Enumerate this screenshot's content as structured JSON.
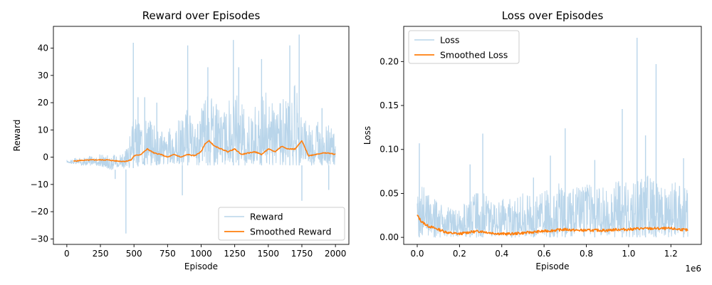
{
  "chart_data": [
    {
      "type": "line",
      "title": "Reward over Episodes",
      "xlabel": "Episode",
      "ylabel": "Reward",
      "xlim": [
        -100,
        2100
      ],
      "ylim": [
        -32,
        48
      ],
      "xticks": [
        0,
        250,
        500,
        750,
        1000,
        1250,
        1500,
        1750,
        2000
      ],
      "xtick_labels": [
        "0",
        "250",
        "500",
        "750",
        "1000",
        "1250",
        "1500",
        "1750",
        "2000"
      ],
      "yticks": [
        -30,
        -20,
        -10,
        0,
        10,
        20,
        30,
        40
      ],
      "ytick_labels": [
        "−30",
        "−20",
        "−10",
        "0",
        "10",
        "20",
        "30",
        "40"
      ],
      "x_offset_label": "",
      "grid": false,
      "legend_position": "lower-right",
      "series": [
        {
          "name": "Reward",
          "color": "#b9d5ea",
          "envelope": {
            "x": [
              0,
              100,
              200,
              300,
              350,
              400,
              430,
              450,
              480,
              500,
              550,
              600,
              650,
              700,
              750,
              800,
              850,
              900,
              950,
              1000,
              1050,
              1100,
              1150,
              1200,
              1250,
              1300,
              1350,
              1400,
              1450,
              1500,
              1550,
              1600,
              1650,
              1700,
              1750,
              1800,
              1850,
              1900,
              1950,
              2000
            ],
            "high": [
              -1,
              0,
              1,
              1,
              1,
              2,
              3,
              5,
              10,
              15,
              12,
              15,
              12,
              10,
              10,
              12,
              15,
              18,
              10,
              20,
              30,
              22,
              15,
              20,
              25,
              20,
              15,
              20,
              22,
              25,
              18,
              22,
              20,
              28,
              15,
              12,
              15,
              10,
              12,
              8
            ],
            "low": [
              -2,
              -3,
              -3,
              -4,
              -5,
              -3,
              -5,
              -4,
              -4,
              -4,
              -3,
              -3,
              -3,
              -3,
              -3,
              -3,
              -3,
              -3,
              -3,
              -3,
              -3,
              -3,
              -3,
              -3,
              -3,
              -3,
              -3,
              -3,
              -3,
              -3,
              -3,
              -3,
              -3,
              -3,
              -3,
              -3,
              -3,
              -3,
              -3,
              -3
            ]
          },
          "spikes": [
            {
              "x": 440,
              "y": -28
            },
            {
              "x": 495,
              "y": 42
            },
            {
              "x": 530,
              "y": 22
            },
            {
              "x": 580,
              "y": 22
            },
            {
              "x": 670,
              "y": 20
            },
            {
              "x": 900,
              "y": 41
            },
            {
              "x": 1050,
              "y": 33
            },
            {
              "x": 1240,
              "y": 43
            },
            {
              "x": 1280,
              "y": 33
            },
            {
              "x": 1450,
              "y": 36
            },
            {
              "x": 1660,
              "y": 41
            },
            {
              "x": 1730,
              "y": 45
            },
            {
              "x": 1750,
              "y": -16
            },
            {
              "x": 860,
              "y": -14
            },
            {
              "x": 360,
              "y": -8
            },
            {
              "x": 1950,
              "y": -12
            },
            {
              "x": 1900,
              "y": 18
            }
          ]
        },
        {
          "name": "Smoothed Reward",
          "color": "#ff7f0e",
          "x": [
            50,
            100,
            200,
            300,
            350,
            400,
            440,
            480,
            500,
            550,
            600,
            650,
            700,
            750,
            800,
            850,
            900,
            950,
            1000,
            1030,
            1060,
            1100,
            1150,
            1200,
            1250,
            1300,
            1350,
            1400,
            1450,
            1500,
            1550,
            1600,
            1650,
            1700,
            1750,
            1800,
            1850,
            1900,
            1950,
            2000
          ],
          "y": [
            -1.5,
            -1.2,
            -1,
            -1,
            -1.3,
            -1.5,
            -1.5,
            -1,
            0.5,
            1,
            3,
            1.5,
            1,
            0,
            1,
            0,
            1,
            0.5,
            2,
            5,
            6,
            4,
            3,
            2,
            3,
            1,
            1.5,
            2,
            1,
            3,
            2,
            4,
            3,
            3,
            6,
            0.5,
            1,
            1.5,
            1.5,
            1
          ]
        }
      ]
    },
    {
      "type": "line",
      "title": "Loss over Episodes",
      "xlabel": "Episode",
      "ylabel": "Loss",
      "xlim": [
        -0.064,
        1.344
      ],
      "ylim": [
        -0.008,
        0.24
      ],
      "xticks": [
        0,
        0.2,
        0.4,
        0.6,
        0.8,
        1.0,
        1.2
      ],
      "xtick_labels": [
        "0.0",
        "0.2",
        "0.4",
        "0.6",
        "0.8",
        "1.0",
        "1.2"
      ],
      "yticks": [
        0,
        0.05,
        0.1,
        0.15,
        0.2
      ],
      "ytick_labels": [
        "0.00",
        "0.05",
        "0.10",
        "0.15",
        "0.20"
      ],
      "x_offset_label": "1e6",
      "grid": false,
      "legend_position": "upper-left",
      "series": [
        {
          "name": "Loss",
          "color": "#b9d5ea",
          "envelope": {
            "x": [
              0,
              0.01,
              0.05,
              0.1,
              0.15,
              0.2,
              0.25,
              0.3,
              0.35,
              0.4,
              0.45,
              0.5,
              0.55,
              0.6,
              0.65,
              0.7,
              0.75,
              0.8,
              0.85,
              0.9,
              0.95,
              1.0,
              1.05,
              1.1,
              1.15,
              1.2,
              1.25,
              1.28
            ],
            "high": [
              0.045,
              0.07,
              0.05,
              0.04,
              0.035,
              0.03,
              0.05,
              0.055,
              0.045,
              0.045,
              0.045,
              0.05,
              0.045,
              0.055,
              0.06,
              0.065,
              0.06,
              0.06,
              0.06,
              0.055,
              0.065,
              0.065,
              0.07,
              0.07,
              0.065,
              0.065,
              0.06,
              0.06
            ],
            "low": [
              0.0,
              0.0,
              0.0,
              0.0,
              0.0,
              0.0,
              0.0,
              0.0,
              0.0,
              0.0,
              0.0,
              0.0,
              0.0,
              0.0,
              0.0,
              0.0,
              0.0,
              0.0,
              0.0,
              0.0,
              0.0,
              0.0,
              0.0,
              0.0,
              0.0,
              0.0,
              0.0,
              0.0
            ]
          },
          "spikes": [
            {
              "x": 0.01,
              "y": 0.107
            },
            {
              "x": 0.25,
              "y": 0.083
            },
            {
              "x": 0.31,
              "y": 0.118
            },
            {
              "x": 0.55,
              "y": 0.068
            },
            {
              "x": 0.63,
              "y": 0.093
            },
            {
              "x": 0.7,
              "y": 0.124
            },
            {
              "x": 0.84,
              "y": 0.088
            },
            {
              "x": 0.97,
              "y": 0.146
            },
            {
              "x": 1.04,
              "y": 0.227
            },
            {
              "x": 1.13,
              "y": 0.197
            },
            {
              "x": 1.08,
              "y": 0.116
            },
            {
              "x": 1.26,
              "y": 0.09
            }
          ]
        },
        {
          "name": "Smoothed Loss",
          "color": "#ff7f0e",
          "x": [
            0,
            0.02,
            0.05,
            0.1,
            0.15,
            0.2,
            0.25,
            0.3,
            0.35,
            0.4,
            0.45,
            0.5,
            0.55,
            0.6,
            0.65,
            0.7,
            0.75,
            0.8,
            0.85,
            0.9,
            0.95,
            1.0,
            1.05,
            1.1,
            1.15,
            1.2,
            1.25,
            1.28
          ],
          "y": [
            0.025,
            0.018,
            0.013,
            0.009,
            0.005,
            0.004,
            0.006,
            0.007,
            0.005,
            0.004,
            0.004,
            0.005,
            0.006,
            0.007,
            0.008,
            0.009,
            0.008,
            0.008,
            0.008,
            0.008,
            0.009,
            0.009,
            0.01,
            0.01,
            0.01,
            0.01,
            0.009,
            0.008
          ]
        }
      ]
    }
  ]
}
